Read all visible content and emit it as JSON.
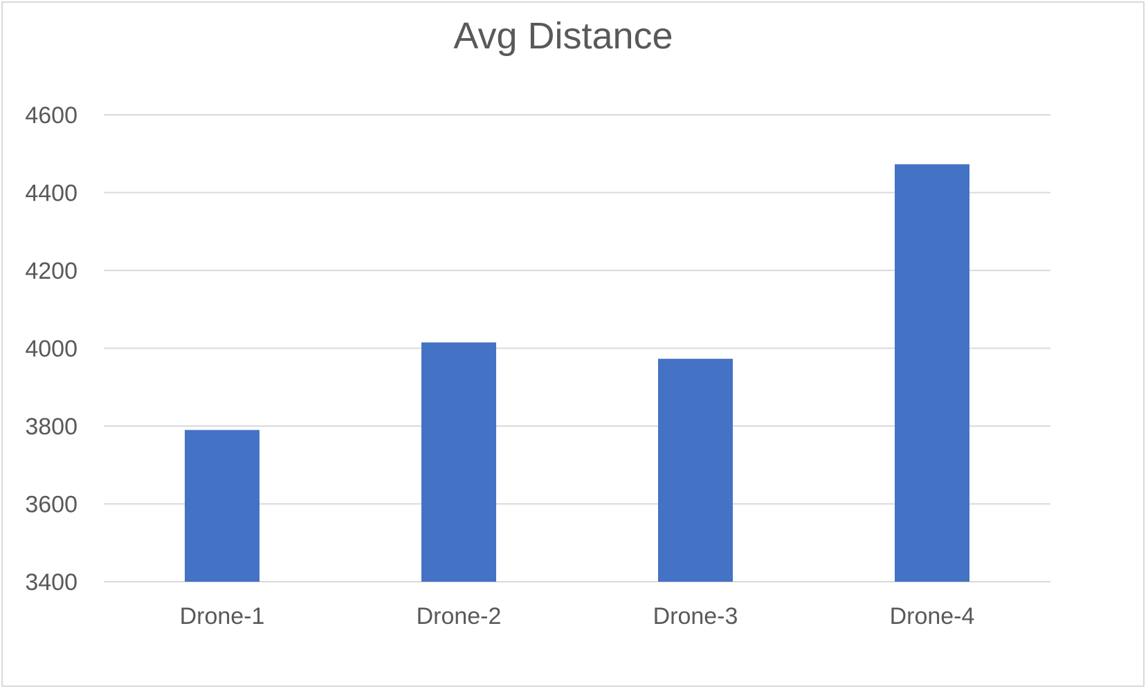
{
  "chart_data": {
    "type": "bar",
    "title": "Avg Distance",
    "categories": [
      "Drone-1",
      "Drone-2",
      "Drone-3",
      "Drone-4"
    ],
    "values": [
      3790,
      4015,
      3973,
      4473
    ],
    "xlabel": "",
    "ylabel": "",
    "ylim": [
      3400,
      4600
    ],
    "yticks": [
      "3400",
      "3600",
      "3800",
      "4000",
      "4200",
      "4400",
      "4600"
    ],
    "grid": true,
    "legend": "none",
    "bar_color": "#4472c4"
  }
}
